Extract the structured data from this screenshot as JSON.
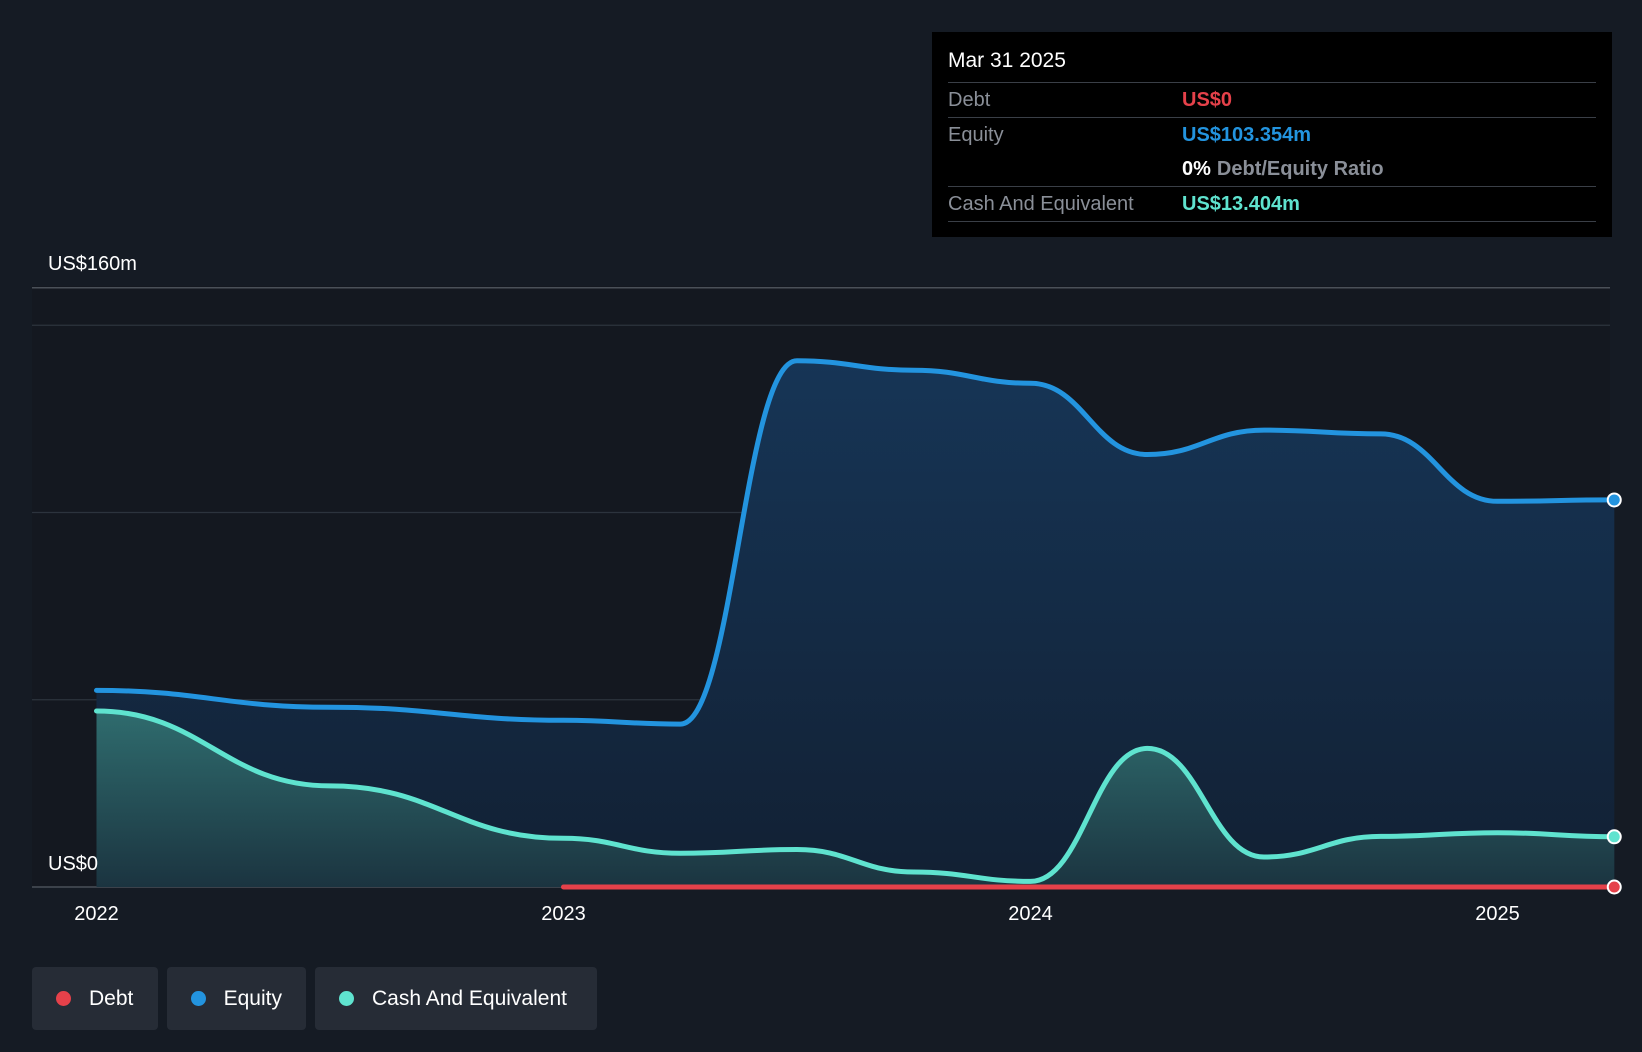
{
  "chart_data": {
    "type": "area",
    "y_top_label": "US$160m",
    "y_bottom_label": "US$0",
    "ylim": [
      0,
      160
    ],
    "y_gridlines": [
      0,
      50,
      100,
      150,
      160
    ],
    "x_ticks": [
      {
        "label": "2022",
        "value": 2022.0
      },
      {
        "label": "2023",
        "value": 2023.0
      },
      {
        "label": "2024",
        "value": 2024.0
      },
      {
        "label": "2025",
        "value": 2025.0
      }
    ],
    "series": [
      {
        "name": "Equity",
        "color": "#2394df",
        "points": [
          [
            2022.0,
            52.5
          ],
          [
            2022.5,
            48.0
          ],
          [
            2023.0,
            44.5
          ],
          [
            2023.25,
            43.5
          ],
          [
            2023.5,
            140.5
          ],
          [
            2023.75,
            138.0
          ],
          [
            2024.0,
            134.5
          ],
          [
            2024.25,
            115.5
          ],
          [
            2024.5,
            122.0
          ],
          [
            2024.75,
            121.0
          ],
          [
            2025.0,
            103.0
          ],
          [
            2025.25,
            103.354
          ]
        ]
      },
      {
        "name": "Cash And Equivalent",
        "color": "#5fe3cf",
        "points": [
          [
            2022.0,
            47.0
          ],
          [
            2022.5,
            27.0
          ],
          [
            2023.0,
            13.0
          ],
          [
            2023.25,
            9.0
          ],
          [
            2023.5,
            10.0
          ],
          [
            2023.75,
            4.0
          ],
          [
            2024.0,
            1.5
          ],
          [
            2024.25,
            37.0
          ],
          [
            2024.5,
            8.0
          ],
          [
            2024.75,
            13.5
          ],
          [
            2025.0,
            14.5
          ],
          [
            2025.25,
            13.404
          ]
        ]
      },
      {
        "name": "Debt",
        "color": "#e5414a",
        "points": [
          [
            2023.0,
            0
          ],
          [
            2023.25,
            0
          ],
          [
            2023.5,
            0
          ],
          [
            2023.75,
            0
          ],
          [
            2024.0,
            0
          ],
          [
            2024.25,
            0
          ],
          [
            2024.5,
            0
          ],
          [
            2024.75,
            0
          ],
          [
            2025.0,
            0
          ],
          [
            2025.25,
            0
          ]
        ]
      }
    ]
  },
  "tooltip": {
    "date": "Mar 31 2025",
    "debt_label": "Debt",
    "debt_value": "US$0",
    "equity_label": "Equity",
    "equity_value": "US$103.354m",
    "ratio_value": "0%",
    "ratio_label": "Debt/Equity Ratio",
    "cash_label": "Cash And Equivalent",
    "cash_value": "US$13.404m"
  },
  "legend": [
    {
      "label": "Debt",
      "color": "#e5414a"
    },
    {
      "label": "Equity",
      "color": "#2394df"
    },
    {
      "label": "Cash And Equivalent",
      "color": "#5fe3cf"
    }
  ]
}
